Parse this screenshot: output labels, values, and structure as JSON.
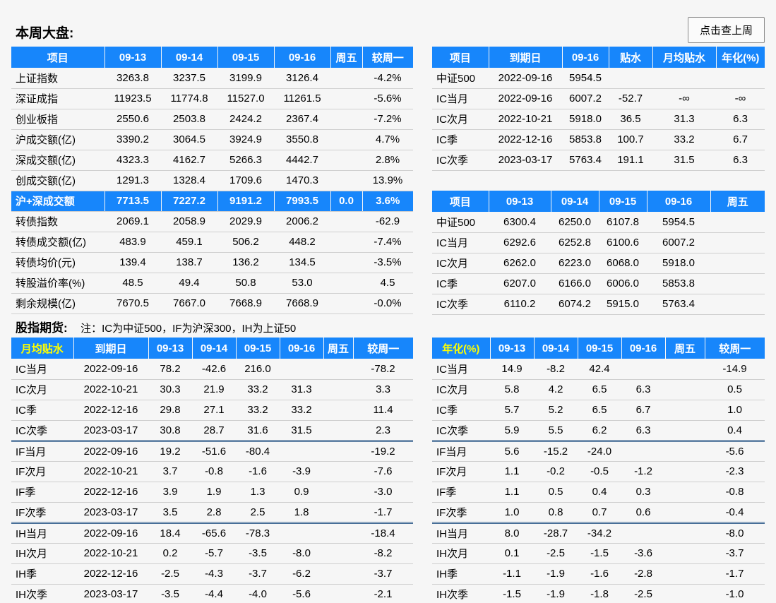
{
  "page": {
    "title_left": "本周大盘:",
    "button_label": "点击查上周",
    "section2_title": "股指期货:",
    "section2_note": "注：IC为中证500，IF为沪深300，IH为上证50"
  },
  "colors": {
    "header_bg": "#1786fb",
    "highlight_row_bg": "#1786fb",
    "header_yellow_text": "#ffff00",
    "group_separator": "#36618e"
  },
  "tables": {
    "market": {
      "headers": [
        "项目",
        "09-13",
        "09-14",
        "09-15",
        "09-16",
        "周五",
        "较周一"
      ],
      "rows": [
        {
          "cells": [
            "上证指数",
            "3263.8",
            "3237.5",
            "3199.9",
            "3126.4",
            "",
            "-4.2%"
          ]
        },
        {
          "cells": [
            "深证成指",
            "11923.5",
            "11774.8",
            "11527.0",
            "11261.5",
            "",
            "-5.6%"
          ]
        },
        {
          "cells": [
            "创业板指",
            "2550.6",
            "2503.8",
            "2424.2",
            "2367.4",
            "",
            "-7.2%"
          ]
        },
        {
          "cells": [
            "沪成交额(亿)",
            "3390.2",
            "3064.5",
            "3924.9",
            "3550.8",
            "",
            "4.7%"
          ]
        },
        {
          "cells": [
            "深成交额(亿)",
            "4323.3",
            "4162.7",
            "5266.3",
            "4442.7",
            "",
            "2.8%"
          ]
        },
        {
          "cells": [
            "创成交额(亿)",
            "1291.3",
            "1328.4",
            "1709.6",
            "1470.3",
            "",
            "13.9%"
          ]
        },
        {
          "cells": [
            "沪+深成交额",
            "7713.5",
            "7227.2",
            "9191.2",
            "7993.5",
            "0.0",
            "3.6%"
          ],
          "highlight": true
        },
        {
          "cells": [
            "转债指数",
            "2069.1",
            "2058.9",
            "2029.9",
            "2006.2",
            "",
            "-62.9"
          ]
        },
        {
          "cells": [
            "转债成交额(亿)",
            "483.9",
            "459.1",
            "506.2",
            "448.2",
            "",
            "-7.4%"
          ]
        },
        {
          "cells": [
            "转债均价(元)",
            "139.4",
            "138.7",
            "136.2",
            "134.5",
            "",
            "-3.5%"
          ]
        },
        {
          "cells": [
            "转股溢价率(%)",
            "48.5",
            "49.4",
            "50.8",
            "53.0",
            "",
            "4.5"
          ]
        },
        {
          "cells": [
            "剩余规模(亿)",
            "7670.5",
            "7667.0",
            "7668.9",
            "7668.9",
            "",
            "-0.0%"
          ]
        }
      ]
    },
    "basis_summary": {
      "headers": [
        "项目",
        "到期日",
        "09-16",
        "贴水",
        "月均贴水",
        "年化(%)"
      ],
      "rows": [
        {
          "cells": [
            "中证500",
            "2022-09-16",
            "5954.5",
            "",
            "",
            ""
          ]
        },
        {
          "cells": [
            "IC当月",
            "2022-09-16",
            "6007.2",
            "-52.7",
            "-∞",
            "-∞"
          ]
        },
        {
          "cells": [
            "IC次月",
            "2022-10-21",
            "5918.0",
            "36.5",
            "31.3",
            "6.3"
          ]
        },
        {
          "cells": [
            "IC季",
            "2022-12-16",
            "5853.8",
            "100.7",
            "33.2",
            "6.7"
          ]
        },
        {
          "cells": [
            "IC次季",
            "2023-03-17",
            "5763.4",
            "191.1",
            "31.5",
            "6.3"
          ]
        }
      ]
    },
    "futures_price": {
      "headers": [
        "项目",
        "09-13",
        "09-14",
        "09-15",
        "09-16",
        "周五"
      ],
      "rows": [
        {
          "cells": [
            "中证500",
            "6300.4",
            "6250.0",
            "6107.8",
            "5954.5",
            ""
          ]
        },
        {
          "cells": [
            "IC当月",
            "6292.6",
            "6252.8",
            "6100.6",
            "6007.2",
            ""
          ]
        },
        {
          "cells": [
            "IC次月",
            "6262.0",
            "6223.0",
            "6068.0",
            "5918.0",
            ""
          ]
        },
        {
          "cells": [
            "IC季",
            "6207.0",
            "6166.0",
            "6006.0",
            "5853.8",
            ""
          ]
        },
        {
          "cells": [
            "IC次季",
            "6110.2",
            "6074.2",
            "5915.0",
            "5763.4",
            ""
          ]
        }
      ]
    },
    "monthly_basis": {
      "headers": [
        "月均贴水",
        "到期日",
        "09-13",
        "09-14",
        "09-15",
        "09-16",
        "周五",
        "较周一"
      ],
      "rows": [
        {
          "cells": [
            "IC当月",
            "2022-09-16",
            "78.2",
            "-42.6",
            "216.0",
            "",
            "",
            "-78.2"
          ]
        },
        {
          "cells": [
            "IC次月",
            "2022-10-21",
            "30.3",
            "21.9",
            "33.2",
            "31.3",
            "",
            "3.3"
          ]
        },
        {
          "cells": [
            "IC季",
            "2022-12-16",
            "29.8",
            "27.1",
            "33.2",
            "33.2",
            "",
            "11.4"
          ]
        },
        {
          "cells": [
            "IC次季",
            "2023-03-17",
            "30.8",
            "28.7",
            "31.6",
            "31.5",
            "",
            "2.3"
          ],
          "group_end": true
        },
        {
          "cells": [
            "IF当月",
            "2022-09-16",
            "19.2",
            "-51.6",
            "-80.4",
            "",
            "",
            "-19.2"
          ]
        },
        {
          "cells": [
            "IF次月",
            "2022-10-21",
            "3.7",
            "-0.8",
            "-1.6",
            "-3.9",
            "",
            "-7.6"
          ]
        },
        {
          "cells": [
            "IF季",
            "2022-12-16",
            "3.9",
            "1.9",
            "1.3",
            "0.9",
            "",
            "-3.0"
          ]
        },
        {
          "cells": [
            "IF次季",
            "2023-03-17",
            "3.5",
            "2.8",
            "2.5",
            "1.8",
            "",
            "-1.7"
          ],
          "group_end": true
        },
        {
          "cells": [
            "IH当月",
            "2022-09-16",
            "18.4",
            "-65.6",
            "-78.3",
            "",
            "",
            "-18.4"
          ]
        },
        {
          "cells": [
            "IH次月",
            "2022-10-21",
            "0.2",
            "-5.7",
            "-3.5",
            "-8.0",
            "",
            "-8.2"
          ]
        },
        {
          "cells": [
            "IH季",
            "2022-12-16",
            "-2.5",
            "-4.3",
            "-3.7",
            "-6.2",
            "",
            "-3.7"
          ]
        },
        {
          "cells": [
            "IH次季",
            "2023-03-17",
            "-3.5",
            "-4.4",
            "-4.0",
            "-5.6",
            "",
            "-2.1"
          ]
        }
      ]
    },
    "annualized": {
      "headers": [
        "年化(%)",
        "09-13",
        "09-14",
        "09-15",
        "09-16",
        "周五",
        "较周一"
      ],
      "rows": [
        {
          "cells": [
            "IC当月",
            "14.9",
            "-8.2",
            "42.4",
            "",
            "",
            "-14.9"
          ]
        },
        {
          "cells": [
            "IC次月",
            "5.8",
            "4.2",
            "6.5",
            "6.3",
            "",
            "0.5"
          ]
        },
        {
          "cells": [
            "IC季",
            "5.7",
            "5.2",
            "6.5",
            "6.7",
            "",
            "1.0"
          ]
        },
        {
          "cells": [
            "IC次季",
            "5.9",
            "5.5",
            "6.2",
            "6.3",
            "",
            "0.4"
          ],
          "group_end": true
        },
        {
          "cells": [
            "IF当月",
            "5.6",
            "-15.2",
            "-24.0",
            "",
            "",
            "-5.6"
          ]
        },
        {
          "cells": [
            "IF次月",
            "1.1",
            "-0.2",
            "-0.5",
            "-1.2",
            "",
            "-2.3"
          ]
        },
        {
          "cells": [
            "IF季",
            "1.1",
            "0.5",
            "0.4",
            "0.3",
            "",
            "-0.8"
          ]
        },
        {
          "cells": [
            "IF次季",
            "1.0",
            "0.8",
            "0.7",
            "0.6",
            "",
            "-0.4"
          ],
          "group_end": true
        },
        {
          "cells": [
            "IH当月",
            "8.0",
            "-28.7",
            "-34.2",
            "",
            "",
            "-8.0"
          ]
        },
        {
          "cells": [
            "IH次月",
            "0.1",
            "-2.5",
            "-1.5",
            "-3.6",
            "",
            "-3.7"
          ]
        },
        {
          "cells": [
            "IH季",
            "-1.1",
            "-1.9",
            "-1.6",
            "-2.8",
            "",
            "-1.7"
          ]
        },
        {
          "cells": [
            "IH次季",
            "-1.5",
            "-1.9",
            "-1.8",
            "-2.5",
            "",
            "-1.0"
          ]
        }
      ]
    }
  }
}
